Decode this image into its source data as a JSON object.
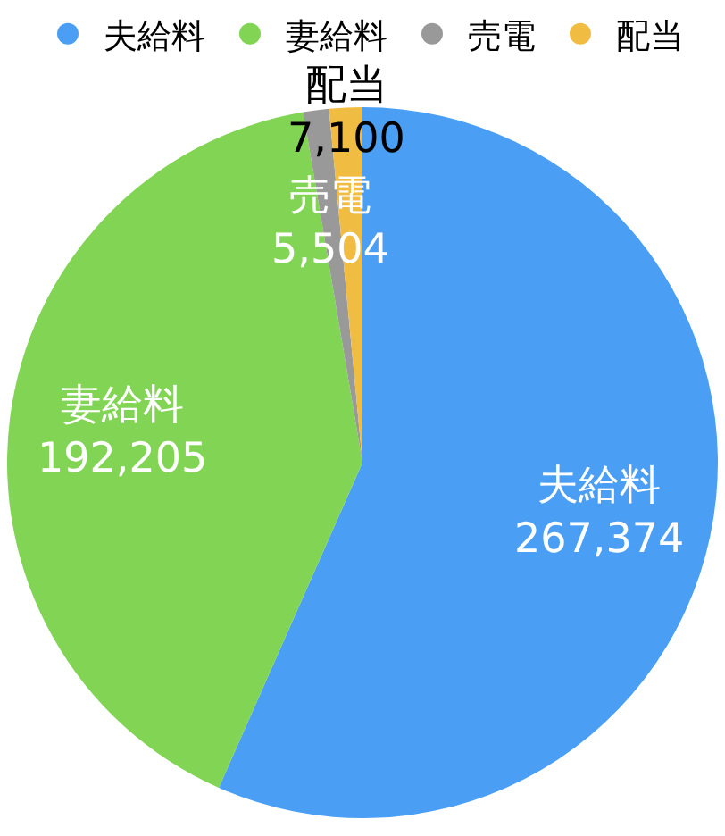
{
  "chart_data": {
    "type": "pie",
    "categories": [
      "夫給料",
      "妻給料",
      "売電",
      "配当"
    ],
    "values": [
      267374,
      192205,
      5504,
      7100
    ],
    "value_labels": [
      "267,374",
      "192,205",
      "5,504",
      "7,100"
    ],
    "colors": [
      "#4a9ff5",
      "#82d454",
      "#999999",
      "#f0bc42"
    ],
    "legend": "top"
  }
}
